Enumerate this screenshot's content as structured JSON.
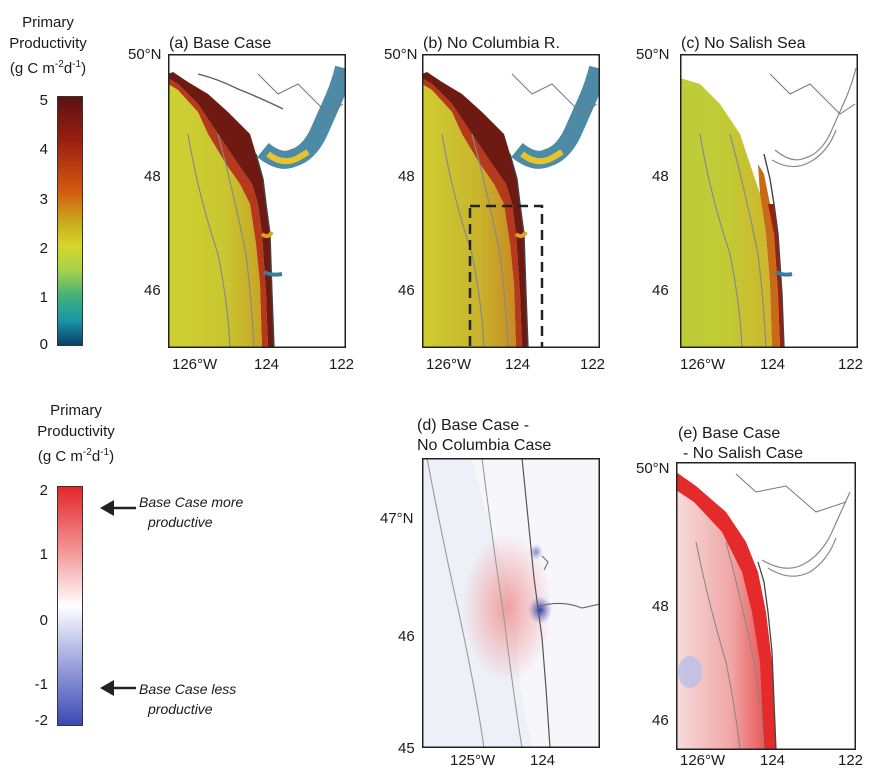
{
  "colorbar_top": {
    "title_line1": "Primary",
    "title_line2": "Productivity",
    "title_line3": "(g C m-2d-1)",
    "ticks": [
      "5",
      "4",
      "3",
      "2",
      "1",
      "0"
    ],
    "colors": [
      "#5a1212",
      "#9c1f12",
      "#d45a10",
      "#c9a81c",
      "#d4d62c",
      "#a6d24a",
      "#45b07a",
      "#1898a8",
      "#0b3d6b"
    ]
  },
  "colorbar_bottom": {
    "title_line1": "Primary",
    "title_line2": "Productivity",
    "title_line3": "(g C m-2d-1)",
    "ticks": [
      "2",
      "1",
      "0",
      "-1",
      "-2"
    ],
    "note_high_line1": "Base Case more",
    "note_high_line2": "productive",
    "note_low_line1": "Base Case less",
    "note_low_line2": "productive",
    "colors": [
      "#e3262a",
      "#f28e8e",
      "#ffffff",
      "#9aa1dc",
      "#3a49b5"
    ]
  },
  "panels": {
    "a": {
      "title": "(a) Base Case",
      "lat_top": "50°N",
      "lat_mid": "48",
      "lat_low": "46",
      "lon_left": "126°W",
      "lon_mid": "124",
      "lon_right": "122"
    },
    "b": {
      "title": "(b) No Columbia R.",
      "lat_top": "50°N",
      "lat_mid": "48",
      "lat_low": "46",
      "lon_left": "126°W",
      "lon_mid": "124",
      "lon_right": "122"
    },
    "c": {
      "title": "(c) No Salish Sea",
      "lat_top": "50°N",
      "lat_mid": "48",
      "lat_low": "46",
      "lon_left": "126°W",
      "lon_mid": "124",
      "lon_right": "122"
    },
    "d": {
      "title_line1": "(d) Base Case -",
      "title_line2": "No Columbia Case",
      "lat_top": "47°N",
      "lat_mid": "46",
      "lat_low": "45",
      "lon_left": "125°W",
      "lon_mid": "124"
    },
    "e": {
      "title_line1": "(e) Base Case",
      "title_line2": "- No Salish Case",
      "lat_top": "50°N",
      "lat_mid": "48",
      "lat_low": "46",
      "lon_left": "126°W",
      "lon_mid": "124",
      "lon_right": "122"
    }
  }
}
